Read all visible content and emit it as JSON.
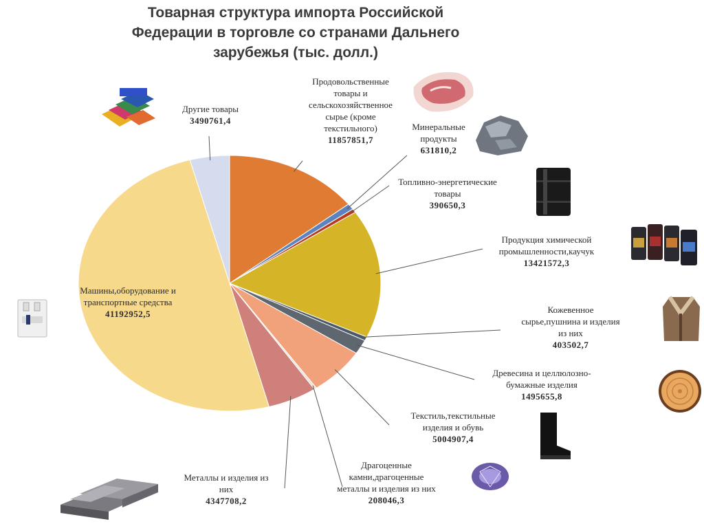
{
  "chart_data": {
    "type": "pie",
    "title": "Товарная структура импорта Российской\nФедерации в торговле со странами Дальнего\nзарубежья (тыс. долл.)",
    "slices": [
      {
        "label": "Продовольственные\nтовары и\nсельскохозяйственное\nсырье (кроме\nтекстильного)",
        "value": "11857851,7",
        "num": 11857851.7,
        "color": "#E07B33"
      },
      {
        "label": "Минеральные\nпродукты",
        "value": "631810,2",
        "num": 631810.2,
        "color": "#5B83C0"
      },
      {
        "label": "Топливно-энергетические\nтовары",
        "value": "390650,3",
        "num": 390650.3,
        "color": "#B83A20"
      },
      {
        "label": "Продукция химической\nпромышленности,каучук",
        "value": "13421572,3",
        "num": 13421572.3,
        "color": "#D6B428"
      },
      {
        "label": "Кожевенное\nсырье,пушнина и изделия\nиз них",
        "value": "403502,7",
        "num": 403502.7,
        "color": "#4B5A68"
      },
      {
        "label": "Древесина и целлюлозно-\nбумажные изделия",
        "value": "1495655,8",
        "num": 1495655.8,
        "color": "#5E6670"
      },
      {
        "label": "Текстиль,текстильные\nизделия и обувь",
        "value": "5004907,4",
        "num": 5004907.4,
        "color": "#F2A27A"
      },
      {
        "label": "Драгоценные\nкамни,драгоценные\nметаллы и изделия из них",
        "value": "208046,3",
        "num": 208046.3,
        "color": "#E8E2D6"
      },
      {
        "label": "Металлы и изделия из\nних",
        "value": "4347708,2",
        "num": 4347708.2,
        "color": "#D0807A"
      },
      {
        "label": "Машины,оборудование и\nтранспортные средства",
        "value": "41192952,5",
        "num": 41192952.5,
        "color": "#F7D98C"
      },
      {
        "label": "Другие товары",
        "value": "3490761,4",
        "num": 3490761.4,
        "color": "#D5DCEE"
      }
    ]
  }
}
